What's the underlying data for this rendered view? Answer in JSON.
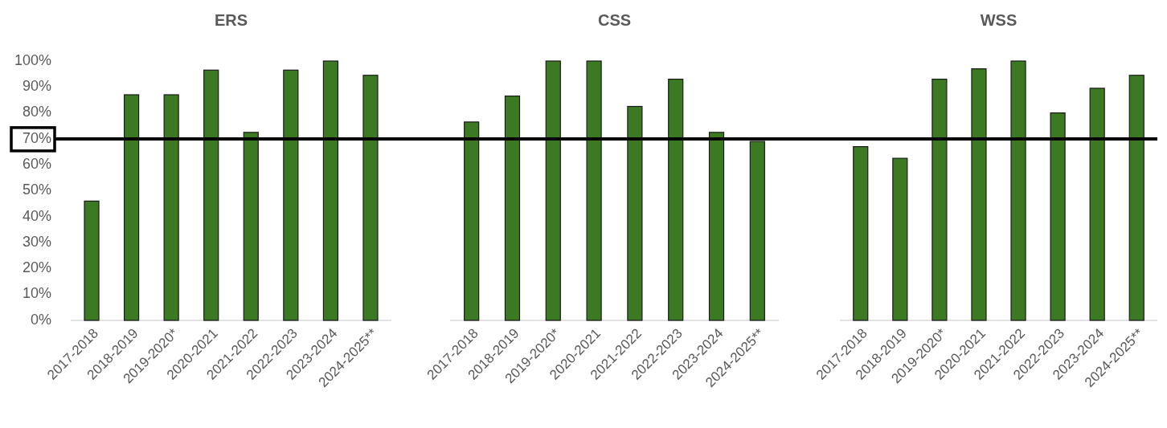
{
  "chart_data": [
    {
      "type": "bar",
      "title": "ERS",
      "categories": [
        "2017-2018",
        "2018-2019",
        "2019-2020*",
        "2020-2021",
        "2021-2022",
        "2022-2023",
        "2023-2024",
        "2024-2025**"
      ],
      "series": [
        {
          "color": "#3b7a23",
          "values": [
            46,
            87,
            87,
            96.5,
            72.5,
            96.5,
            100,
            94.5
          ]
        }
      ],
      "ylim": [
        0,
        100
      ],
      "yticks": [
        {
          "value": 0,
          "label": "0%"
        },
        {
          "value": 10,
          "label": "10%"
        },
        {
          "value": 20,
          "label": "20%"
        },
        {
          "value": 30,
          "label": "30%"
        },
        {
          "value": 40,
          "label": "40%"
        },
        {
          "value": 50,
          "label": "50%"
        },
        {
          "value": 60,
          "label": "60%"
        },
        {
          "value": 70,
          "label": "70%"
        },
        {
          "value": 80,
          "label": "80%"
        },
        {
          "value": 90,
          "label": "90%"
        },
        {
          "value": 100,
          "label": "100%"
        }
      ],
      "ref_lines": [
        {
          "axis": "y",
          "value": 70,
          "color": "#000000"
        }
      ]
    },
    {
      "type": "bar",
      "title": "CSS",
      "categories": [
        "2017-2018",
        "2018-2019",
        "2019-2020*",
        "2020-2021",
        "2021-2022",
        "2022-2023",
        "2023-2024",
        "2024-2025**"
      ],
      "series": [
        {
          "color": "#3b7a23",
          "values": [
            76.5,
            86.5,
            100,
            100,
            82.5,
            93,
            72.5,
            69
          ]
        }
      ],
      "ylim": [
        0,
        100
      ],
      "tick_labels": "x",
      "ref_lines": [
        {
          "axis": "y",
          "value": 70,
          "color": "#000000"
        }
      ]
    },
    {
      "type": "bar",
      "title": "WSS",
      "categories": [
        "2017-2018",
        "2018-2019",
        "2019-2020*",
        "2020-2021",
        "2021-2022",
        "2022-2023",
        "2023-2024",
        "2024-2025**"
      ],
      "series": [
        {
          "color": "#3b7a23",
          "values": [
            67,
            62.5,
            93,
            97,
            100,
            80,
            89.5,
            94.5
          ]
        }
      ],
      "ylim": [
        0,
        100
      ],
      "tick_labels": "x",
      "ref_lines": [
        {
          "axis": "y",
          "value": 70,
          "color": "#000000"
        }
      ]
    }
  ]
}
